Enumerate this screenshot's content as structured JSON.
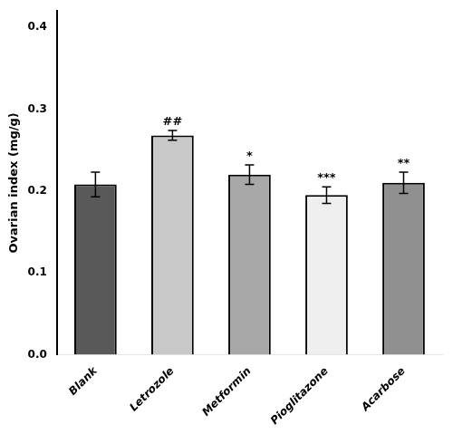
{
  "chart_data": {
    "type": "bar",
    "ylabel": "Ovarian index (mg/g)",
    "categories": [
      "Blank",
      "Letrozole",
      "Metformin",
      "Pioglitazone",
      "Acarbose"
    ],
    "values": [
      0.208,
      0.268,
      0.22,
      0.195,
      0.21
    ],
    "errors": [
      0.015,
      0.006,
      0.012,
      0.01,
      0.013
    ],
    "colors": [
      "#595959",
      "#c8c8c8",
      "#a8a8a8",
      "#efefef",
      "#909090"
    ],
    "annotations": [
      {
        "category": "Letrozole",
        "text": "##"
      },
      {
        "category": "Metformin",
        "text": "*"
      },
      {
        "category": "Pioglitazone",
        "text": "***"
      },
      {
        "category": "Acarbose",
        "text": "**"
      }
    ],
    "ylim": [
      0.0,
      0.42
    ],
    "yticks": [
      {
        "value": 0,
        "label": "0.0"
      },
      0.1,
      0.2,
      0.3,
      0.4
    ],
    "grid": false,
    "legend": false
  }
}
